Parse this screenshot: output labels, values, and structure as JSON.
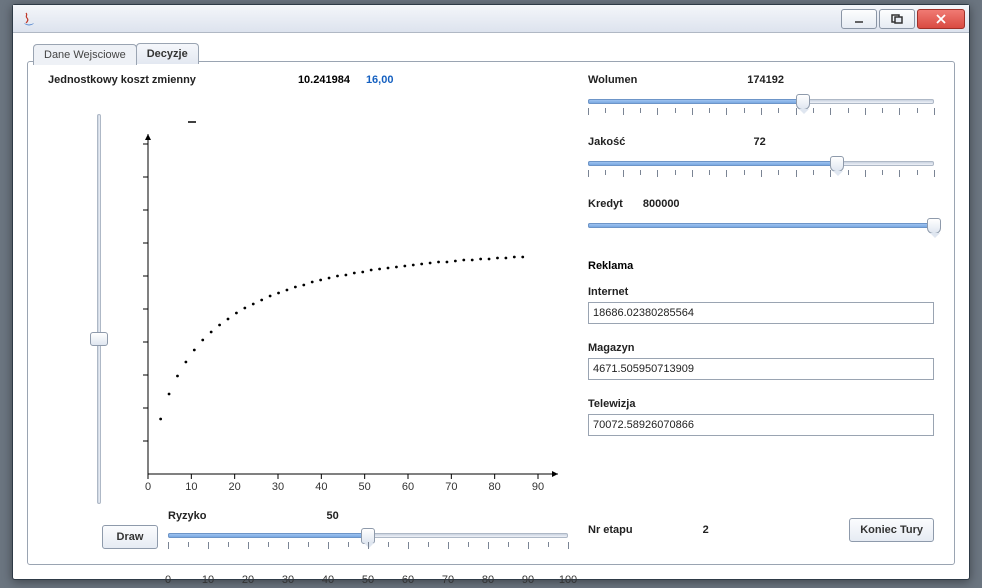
{
  "window": {
    "title": ""
  },
  "tabs": {
    "inactive": "Dane Wejsciowe",
    "active": "Decyzje"
  },
  "left": {
    "cost_label": "Jednostkowy koszt zmienny",
    "cost_value": "10.241984",
    "cost_target": "16,00",
    "vslider": {
      "pos_pct": 58
    },
    "ryzyko": {
      "label": "Ryzyko",
      "value": "50",
      "pos_pct": 50,
      "ticks": [
        "0",
        "10",
        "20",
        "30",
        "40",
        "50",
        "60",
        "70",
        "80",
        "90",
        "100"
      ]
    },
    "draw_btn": "Draw",
    "chart": {
      "x_ticks": [
        "0",
        "10",
        "20",
        "30",
        "40",
        "50",
        "60",
        "70",
        "80",
        "90"
      ],
      "x_range": 95,
      "y_range": 360,
      "points": [
        [
          3,
          275
        ],
        [
          5,
          250
        ],
        [
          7,
          232
        ],
        [
          9,
          218
        ],
        [
          11,
          206
        ],
        [
          13,
          196
        ],
        [
          15,
          188
        ],
        [
          17,
          181
        ],
        [
          19,
          175
        ],
        [
          21,
          169
        ],
        [
          23,
          164
        ],
        [
          25,
          160
        ],
        [
          27,
          156
        ],
        [
          29,
          152
        ],
        [
          31,
          149
        ],
        [
          33,
          146
        ],
        [
          35,
          143
        ],
        [
          37,
          141
        ],
        [
          39,
          138
        ],
        [
          41,
          136
        ],
        [
          43,
          134
        ],
        [
          45,
          132
        ],
        [
          47,
          131
        ],
        [
          49,
          129
        ],
        [
          51,
          128
        ],
        [
          53,
          126
        ],
        [
          55,
          125
        ],
        [
          57,
          124
        ],
        [
          59,
          123
        ],
        [
          61,
          122
        ],
        [
          63,
          121
        ],
        [
          65,
          120
        ],
        [
          67,
          119
        ],
        [
          69,
          118
        ],
        [
          71,
          118
        ],
        [
          73,
          117
        ],
        [
          75,
          116
        ],
        [
          77,
          116
        ],
        [
          79,
          115
        ],
        [
          81,
          115
        ],
        [
          83,
          114
        ],
        [
          85,
          114
        ],
        [
          87,
          113
        ],
        [
          89,
          113
        ]
      ]
    }
  },
  "right": {
    "wolumen": {
      "label": "Wolumen",
      "value": "174192",
      "pos_pct": 62
    },
    "jakosc": {
      "label": "Jakość",
      "value": "72",
      "pos_pct": 72
    },
    "kredyt": {
      "label": "Kredyt",
      "value": "800000",
      "pos_pct": 100
    },
    "reklama_title": "Reklama",
    "internet": {
      "label": "Internet",
      "value": "18686.02380285564"
    },
    "magazyn": {
      "label": "Magazyn",
      "value": "4671.505950713909"
    },
    "telewizja": {
      "label": "Telewizja",
      "value": "70072.58926070866"
    },
    "etap_label": "Nr etapu",
    "etap_value": "2",
    "end_btn": "Koniec Tury"
  },
  "colors": {
    "accent": "#1560c0"
  }
}
